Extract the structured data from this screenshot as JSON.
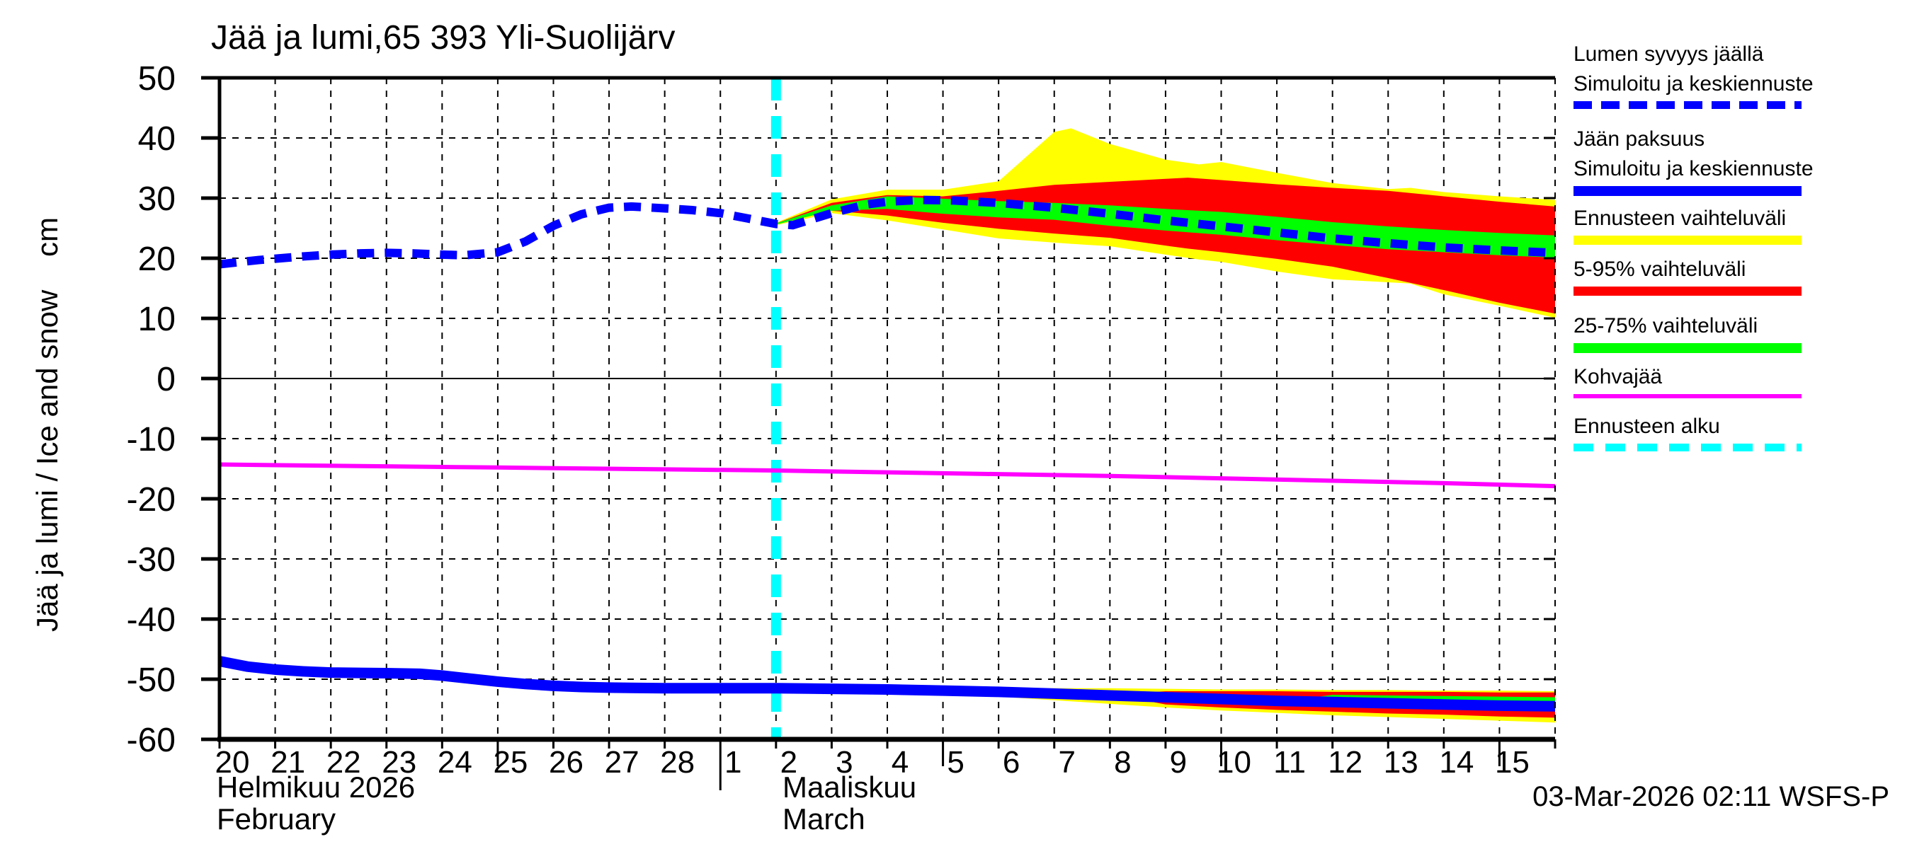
{
  "footer": {
    "timestamp": "03-Mar-2026 02:11 WSFS-P"
  },
  "months": [
    {
      "name_local": "Helmikuu 2026",
      "name_en": "February"
    },
    {
      "name_local": "Maaliskuu",
      "name_en": "March"
    }
  ],
  "legend": {
    "items": [
      {
        "lines": [
          "Lumen syvyys jäällä",
          "Simuloitu ja keskiennuste"
        ],
        "style": "dashed",
        "color": "#0000ff",
        "thickness": 11,
        "dash": 26,
        "gap": 13
      },
      {
        "lines": [
          "Jään paksuus",
          "Simuloitu ja keskiennuste"
        ],
        "style": "solid",
        "color": "#0000ff",
        "thickness": 14
      },
      {
        "lines": [
          "Ennusteen vaihteluväli"
        ],
        "style": "solid",
        "color": "#ffff00",
        "thickness": 13
      },
      {
        "lines": [
          "5-95% vaihteluväli"
        ],
        "style": "solid",
        "color": "#ff0000",
        "thickness": 13
      },
      {
        "lines": [
          "25-75% vaihteluväli"
        ],
        "style": "solid",
        "color": "#00ff00",
        "thickness": 14
      },
      {
        "lines": [
          "Kohvajää"
        ],
        "style": "solid",
        "color": "#ff00ff",
        "thickness": 6
      },
      {
        "lines": [
          "Ennusteen alku"
        ],
        "style": "dashed",
        "color": "#00ffff",
        "thickness": 11,
        "dash": 28,
        "gap": 17
      }
    ]
  },
  "chart_data": {
    "type": "line",
    "title": "Jää ja lumi,65 393 Yli-Suolijärv",
    "ylabel": "Jää ja lumi / Ice and snow    cm",
    "ylim": [
      -60,
      50
    ],
    "y_ticks": [
      50,
      40,
      30,
      20,
      10,
      0,
      -10,
      -20,
      -30,
      -40,
      -50,
      -60
    ],
    "x_day_labels": [
      "20",
      "21",
      "22",
      "23",
      "24",
      "25",
      "26",
      "27",
      "28",
      "1",
      "2",
      "3",
      "4",
      "5",
      "6",
      "7",
      "8",
      "9",
      "10",
      "11",
      "12",
      "13",
      "14",
      "15"
    ],
    "x_total_days": 24,
    "forecast_start_day": 10,
    "month_boundary_day": 9,
    "long_tick_days": [
      5,
      13,
      18,
      23
    ],
    "grid": true,
    "legend_position": "outside-right",
    "colors": {
      "median": "#0000ff",
      "range": "#ffff00",
      "p5_95": "#ff0000",
      "p25_75": "#00ff00",
      "kohvajaa": "#ff00ff",
      "forecast_start": "#00ffff",
      "axis": "#000000"
    },
    "series": {
      "snow_median": [
        [
          0,
          19.0
        ],
        [
          0.7,
          19.7
        ],
        [
          1.5,
          20.3
        ],
        [
          2,
          20.6
        ],
        [
          2.5,
          20.8
        ],
        [
          3,
          20.9
        ],
        [
          3.5,
          20.8
        ],
        [
          4,
          20.6
        ],
        [
          4.4,
          20.5
        ],
        [
          5,
          21.0
        ],
        [
          5.5,
          22.8
        ],
        [
          6,
          25.4
        ],
        [
          6.5,
          27.3
        ],
        [
          7,
          28.4
        ],
        [
          7.4,
          28.6
        ],
        [
          8,
          28.3
        ],
        [
          8.5,
          28.0
        ],
        [
          9,
          27.5
        ],
        [
          9.5,
          26.6
        ],
        [
          10,
          25.7
        ],
        [
          10.3,
          25.5
        ],
        [
          11,
          27.5
        ],
        [
          11.6,
          28.9
        ],
        [
          12,
          29.4
        ],
        [
          12.6,
          29.7
        ],
        [
          13.2,
          29.6
        ],
        [
          14,
          29.2
        ],
        [
          15,
          28.4
        ],
        [
          16,
          27.4
        ],
        [
          17,
          26.3
        ],
        [
          18,
          25.3
        ],
        [
          19,
          24.3
        ],
        [
          20,
          23.3
        ],
        [
          21,
          22.5
        ],
        [
          22,
          21.8
        ],
        [
          23,
          21.3
        ],
        [
          24,
          20.9
        ]
      ],
      "snow_range_band": [
        [
          10,
          25.5,
          25.9
        ],
        [
          11,
          27.5,
          29.8
        ],
        [
          12,
          26.3,
          31.4
        ],
        [
          13,
          24.8,
          31.4
        ],
        [
          14,
          23.3,
          32.8
        ],
        [
          15,
          22.6,
          41.0
        ],
        [
          15.3,
          22.4,
          41.6
        ],
        [
          16,
          22.0,
          39.0
        ],
        [
          17,
          20.6,
          36.4
        ],
        [
          17.6,
          19.8,
          35.6
        ],
        [
          18,
          19.4,
          36.0
        ],
        [
          19,
          17.8,
          34.2
        ],
        [
          20,
          16.5,
          32.5
        ],
        [
          21,
          16.0,
          31.5
        ],
        [
          21.4,
          15.8,
          31.7
        ],
        [
          22,
          14.0,
          31.0
        ],
        [
          23,
          12.1,
          30.3
        ],
        [
          24,
          10.1,
          29.7
        ]
      ],
      "snow_p5_95_band": [
        [
          10,
          25.6,
          25.8
        ],
        [
          11,
          27.9,
          29.2
        ],
        [
          12,
          27.1,
          30.5
        ],
        [
          13,
          25.9,
          30.3
        ],
        [
          14,
          24.9,
          31.2
        ],
        [
          15,
          24.1,
          32.2
        ],
        [
          16,
          23.4,
          32.7
        ],
        [
          17,
          22.1,
          33.2
        ],
        [
          17.4,
          21.6,
          33.4
        ],
        [
          18,
          21.0,
          33.0
        ],
        [
          19,
          19.9,
          32.3
        ],
        [
          20,
          18.6,
          31.7
        ],
        [
          21,
          16.7,
          31.2
        ],
        [
          22,
          14.7,
          30.3
        ],
        [
          23,
          12.6,
          29.4
        ],
        [
          24,
          10.8,
          28.6
        ]
      ],
      "snow_p25_75_band": [
        [
          10,
          25.6,
          25.8
        ],
        [
          11,
          27.9,
          28.8
        ],
        [
          12,
          28.2,
          30.3
        ],
        [
          13,
          27.4,
          29.9
        ],
        [
          14,
          26.8,
          29.5
        ],
        [
          15,
          26.4,
          29.2
        ],
        [
          16,
          25.4,
          28.8
        ],
        [
          17,
          24.6,
          28.2
        ],
        [
          18,
          23.9,
          27.7
        ],
        [
          19,
          23.0,
          26.9
        ],
        [
          20,
          22.2,
          26.0
        ],
        [
          21,
          21.5,
          25.3
        ],
        [
          22,
          21.0,
          24.7
        ],
        [
          23,
          20.5,
          24.2
        ],
        [
          24,
          20.1,
          23.8
        ]
      ],
      "ice_median": [
        [
          0,
          -47.0
        ],
        [
          0.5,
          -47.9
        ],
        [
          1,
          -48.4
        ],
        [
          1.5,
          -48.7
        ],
        [
          2,
          -48.9
        ],
        [
          3,
          -49.0
        ],
        [
          3.6,
          -49.1
        ],
        [
          4,
          -49.4
        ],
        [
          4.5,
          -49.9
        ],
        [
          5,
          -50.4
        ],
        [
          5.5,
          -50.8
        ],
        [
          6,
          -51.1
        ],
        [
          6.5,
          -51.3
        ],
        [
          7,
          -51.4
        ],
        [
          8,
          -51.5
        ],
        [
          9,
          -51.5
        ],
        [
          10,
          -51.5
        ],
        [
          11,
          -51.6
        ],
        [
          12,
          -51.7
        ],
        [
          13,
          -51.9
        ],
        [
          14,
          -52.1
        ],
        [
          15,
          -52.4
        ],
        [
          16,
          -52.7
        ],
        [
          17,
          -53.0
        ],
        [
          18,
          -53.3
        ],
        [
          19,
          -53.6
        ],
        [
          20,
          -53.8
        ],
        [
          21,
          -54.0
        ],
        [
          22,
          -54.2
        ],
        [
          23,
          -54.4
        ],
        [
          24,
          -54.5
        ]
      ],
      "ice_range_band": [
        [
          13.5,
          -52.3,
          -51.8
        ],
        [
          14,
          -52.9,
          -51.5
        ],
        [
          15,
          -53.5,
          -51.5
        ],
        [
          16,
          -54.1,
          -51.5
        ],
        [
          17,
          -54.7,
          -51.6
        ],
        [
          18,
          -55.2,
          -51.7
        ],
        [
          19,
          -55.6,
          -51.7
        ],
        [
          20,
          -56.0,
          -51.8
        ],
        [
          21,
          -56.3,
          -51.8
        ],
        [
          22,
          -56.6,
          -51.9
        ],
        [
          23,
          -56.9,
          -51.9
        ],
        [
          24,
          -57.2,
          -52.0
        ]
      ],
      "ice_p5_95_band": [
        [
          16.5,
          -53.3,
          -52.3
        ],
        [
          17,
          -54.2,
          -52.0
        ],
        [
          18,
          -54.7,
          -52.0
        ],
        [
          19,
          -55.1,
          -52.0
        ],
        [
          20,
          -55.4,
          -52.1
        ],
        [
          21,
          -55.7,
          -52.1
        ],
        [
          22,
          -55.9,
          -52.1
        ],
        [
          23,
          -56.2,
          -52.2
        ],
        [
          24,
          -56.4,
          -52.2
        ]
      ],
      "ice_p25_75_band": [
        [
          19.5,
          -53.8,
          -53.2
        ],
        [
          20,
          -54.6,
          -52.6
        ],
        [
          22,
          -54.9,
          -52.8
        ],
        [
          24,
          -55.2,
          -53.0
        ]
      ],
      "kohvajaa": [
        [
          0,
          -14.3
        ],
        [
          3,
          -14.6
        ],
        [
          5,
          -14.8
        ],
        [
          8,
          -15.1
        ],
        [
          10,
          -15.3
        ],
        [
          12,
          -15.6
        ],
        [
          14,
          -15.9
        ],
        [
          16,
          -16.2
        ],
        [
          18,
          -16.6
        ],
        [
          20,
          -17.0
        ],
        [
          22,
          -17.4
        ],
        [
          24,
          -17.9
        ]
      ]
    }
  }
}
